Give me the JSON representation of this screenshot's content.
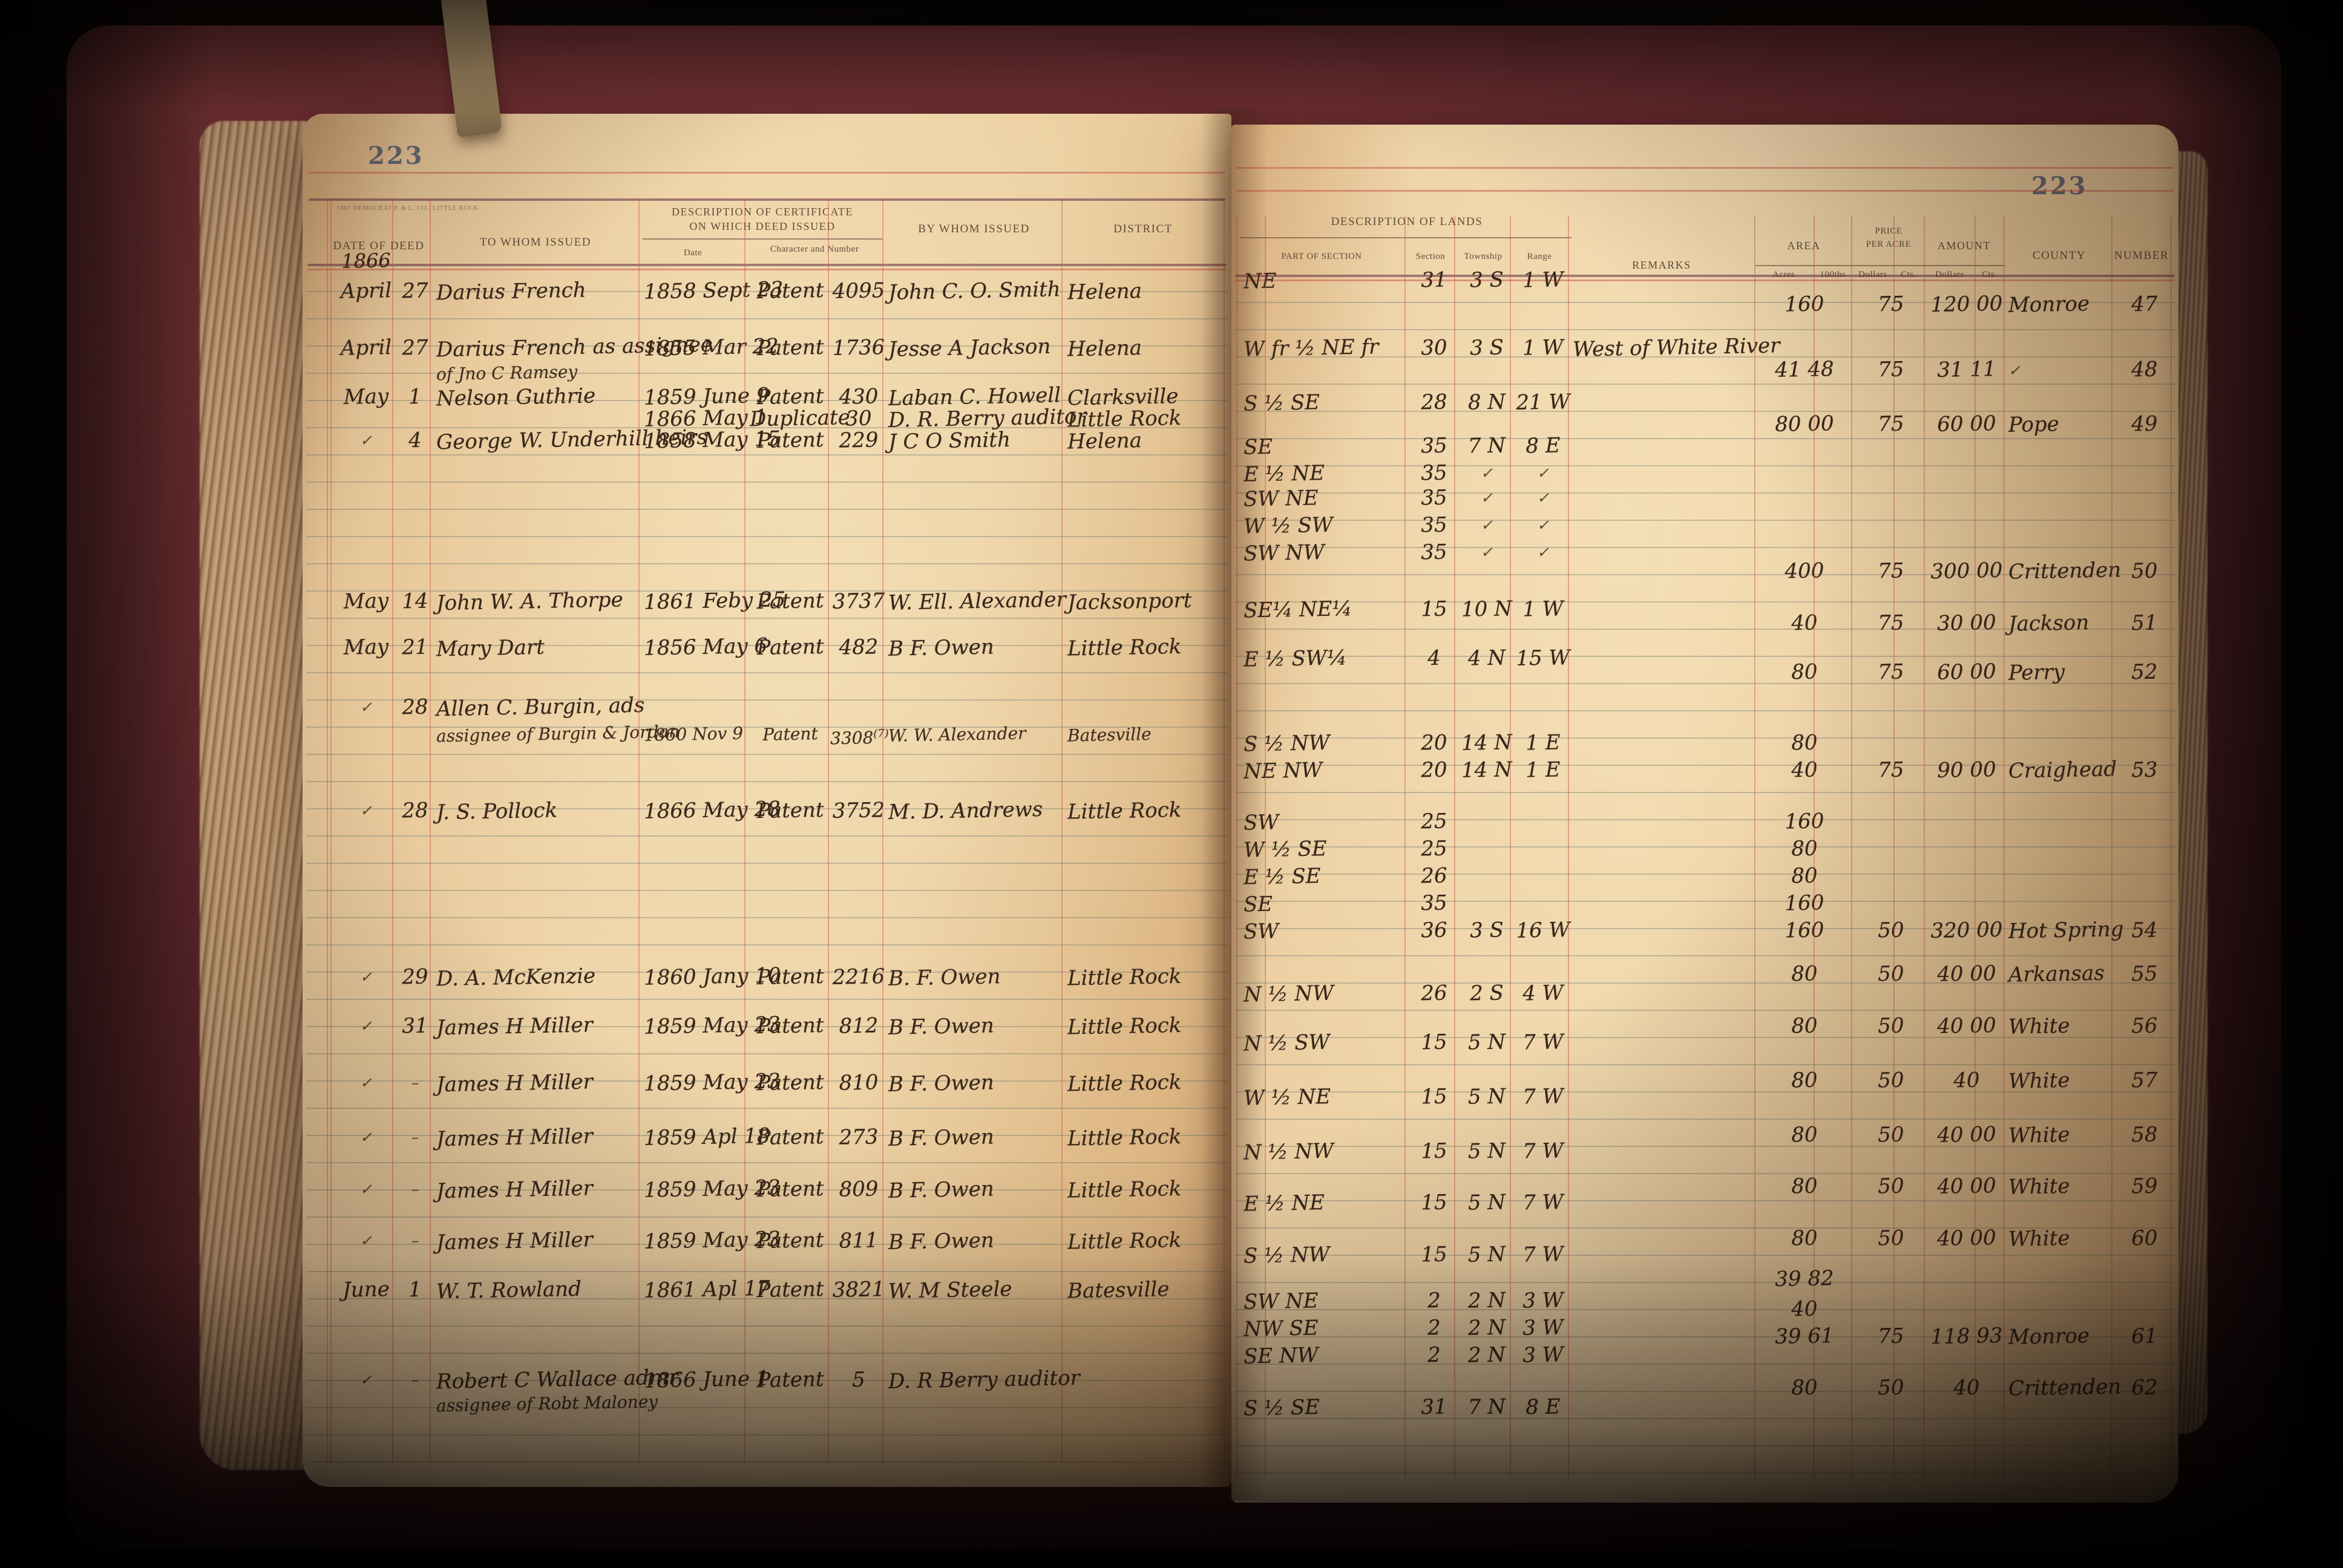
{
  "ledger": {
    "left_page": {
      "page_number": "223",
      "printer_mark": "1887 DEMOCRAT P. & L. CO., LITTLE ROCK",
      "year_heading": "1866",
      "headers": {
        "date_of_deed": "DATE OF DEED",
        "to_whom_issued": "TO WHOM ISSUED",
        "description_of_certificate_line1": "DESCRIPTION OF CERTIFICATE",
        "description_of_certificate_line2": "ON WHICH DEED ISSUED",
        "date": "Date",
        "character_and_number": "Character and Number",
        "by_whom_issued": "BY WHOM ISSUED",
        "district": "DISTRICT"
      },
      "entries": [
        {
          "line": 0.2,
          "month": "1866",
          "cls": "yr"
        },
        {
          "line": 1.3,
          "month": "April",
          "day": "27",
          "name": "Darius French",
          "cert": "1858 Sept 23",
          "char": "Patent",
          "certno": "4095",
          "by": "John C. O. Smith",
          "district": "Helena"
        },
        {
          "line": 3.4,
          "month": "April",
          "day": "27",
          "name": "Darius French as assignee",
          "cert": "1855 Mar 22",
          "char": "Patent",
          "certno": "1736",
          "by": "Jesse A Jackson",
          "district": "Helena"
        },
        {
          "line": 4.3,
          "name": "of Jno C Ramsey",
          "cls": "sub"
        },
        {
          "line": 5.2,
          "month": "May",
          "day": "1",
          "name": "Nelson Guthrie",
          "cert": "1859 June 9",
          "char": "Patent",
          "certno": "430",
          "by": "Laban C. Howell",
          "district": "Clarksville"
        },
        {
          "line": 6.0,
          "cert": "1866 May 1",
          "char": "Duplicate",
          "certno": "30",
          "by": "D. R. Berry auditor",
          "district": "Little Rock"
        },
        {
          "line": 6.8,
          "month": "✓",
          "day": "4",
          "name": "George W. Underhill heirs",
          "cert": "1858 May 15",
          "char": "Patent",
          "certno": "229",
          "by": "J C O Smith",
          "district": "Helena"
        },
        {
          "line": 12.7,
          "month": "May",
          "day": "14",
          "name": "John W. A. Thorpe",
          "cert": "1861 Feby 25",
          "char": "Patent",
          "certno": "3737",
          "by": "W. Ell. Alexander",
          "district": "Jacksonport"
        },
        {
          "line": 14.4,
          "month": "May",
          "day": "21",
          "name": "Mary Dart",
          "cert": "1856 May 6",
          "char": "Patent",
          "certno": "482",
          "by": "B F. Owen",
          "district": "Little Rock"
        },
        {
          "line": 16.6,
          "month": "✓",
          "day": "28",
          "name": "Allen C. Burgin, ads"
        },
        {
          "line": 17.6,
          "name": "assignee of Burgin & Jordan",
          "cls": "sub",
          "cert": "1860 Nov 9",
          "char": "Patent",
          "certno": "3308",
          "certnote": "(7)",
          "by": "W. W. Alexander",
          "district": "Batesville"
        },
        {
          "line": 20.4,
          "month": "✓",
          "day": "28",
          "name": "J. S. Pollock",
          "cert": "1866 May 28",
          "char": "Patent",
          "certno": "3752",
          "by": "M. D. Andrews",
          "district": "Little Rock"
        },
        {
          "line": 26.5,
          "month": "✓",
          "day": "29",
          "name": "D. A. McKenzie",
          "cert": "1860 Jany 10",
          "char": "Patent",
          "certno": "2216",
          "by": "B. F. Owen",
          "district": "Little Rock"
        },
        {
          "line": 28.3,
          "month": "✓",
          "day": "31",
          "name": "James H Miller",
          "cert": "1859 May 23",
          "char": "Patent",
          "certno": "812",
          "by": "B F. Owen",
          "district": "Little Rock"
        },
        {
          "line": 30.4,
          "month": "✓",
          "day": "–",
          "name": "James H Miller",
          "cert": "1859 May 23",
          "char": "Patent",
          "certno": "810",
          "by": "B F. Owen",
          "district": "Little Rock"
        },
        {
          "line": 32.4,
          "month": "✓",
          "day": "–",
          "name": "James H Miller",
          "cert": "1859 Apl 18",
          "char": "Patent",
          "certno": "273",
          "by": "B F. Owen",
          "district": "Little Rock"
        },
        {
          "line": 34.3,
          "month": "✓",
          "day": "–",
          "name": "James H Miller",
          "cert": "1859 May 23",
          "char": "Patent",
          "certno": "809",
          "by": "B F. Owen",
          "district": "Little Rock"
        },
        {
          "line": 36.2,
          "month": "✓",
          "day": "–",
          "name": "James H Miller",
          "cert": "1859 May 23",
          "char": "Patent",
          "certno": "811",
          "by": "B F. Owen",
          "district": "Little Rock"
        },
        {
          "line": 38.0,
          "month": "June",
          "day": "1",
          "name": "W. T. Rowland",
          "cert": "1861 Apl 17",
          "char": "Patent",
          "certno": "3821",
          "by": "W. M Steele",
          "district": "Batesville"
        },
        {
          "line": 41.3,
          "month": "✓",
          "day": "–",
          "name": "Robert C Wallace admr",
          "cert": "1866 June 1",
          "char": "Patent",
          "certno": "5",
          "by": "D. R Berry auditor"
        },
        {
          "line": 42.2,
          "name": "assignee of Robt Maloney",
          "cls": "sub"
        }
      ]
    },
    "right_page": {
      "page_number": "223",
      "headers": {
        "description_of_lands": "DESCRIPTION OF LANDS",
        "part_of_section": "PART OF SECTION",
        "section": "Section",
        "township": "Township",
        "range": "Range",
        "remarks": "REMARKS",
        "area": "AREA",
        "acres": "Acres",
        "hundredths": "100ths",
        "price_line1": "PRICE",
        "price_line2": "PER ACRE",
        "price_dollars": "Dollars",
        "price_cts": "Cts.",
        "amount": "AMOUNT",
        "amount_dollars": "Dollars",
        "amount_cts": "Cts.",
        "county": "COUNTY",
        "number": "NUMBER"
      },
      "entries": [
        {
          "line": 0.5,
          "part": "NE",
          "sec": "31",
          "twp": "3 S",
          "rng": "1 W"
        },
        {
          "line": 1.4,
          "area": "160",
          "price": "75",
          "amount": "120 00",
          "county": "Monroe",
          "num": "47"
        },
        {
          "line": 3.0,
          "part": "W fr ½  NE fr",
          "sec": "30",
          "twp": "3 S",
          "rng": "1 W",
          "remarks": "West of White River"
        },
        {
          "line": 3.8,
          "area": "41 48",
          "price": "75",
          "amount": "31 11",
          "county": "✓",
          "num": "48"
        },
        {
          "line": 5.0,
          "part": "S ½  SE",
          "sec": "28",
          "twp": "8 N",
          "rng": "21 W"
        },
        {
          "line": 5.8,
          "area": "80 00",
          "price": "75",
          "amount": "60 00",
          "county": "Pope",
          "num": "49"
        },
        {
          "line": 6.6,
          "part": "SE",
          "sec": "35",
          "twp": "7 N",
          "rng": "8 E"
        },
        {
          "line": 7.6,
          "part": "E ½  NE",
          "sec": "35",
          "twp": "✓",
          "rng": "✓"
        },
        {
          "line": 8.5,
          "part": "SW  NE",
          "sec": "35",
          "twp": "✓",
          "rng": "✓"
        },
        {
          "line": 9.5,
          "part": "W ½  SW",
          "sec": "35",
          "twp": "✓",
          "rng": "✓"
        },
        {
          "line": 10.5,
          "part": "SW  NW",
          "sec": "35",
          "twp": "✓",
          "rng": "✓"
        },
        {
          "line": 11.2,
          "area": "400",
          "price": "75",
          "amount": "300 00",
          "county": "Crittenden",
          "num": "50"
        },
        {
          "line": 12.6,
          "part": "SE¼  NE¼",
          "sec": "15",
          "twp": "10 N",
          "rng": "1 W"
        },
        {
          "line": 13.1,
          "area": "40",
          "price": "75",
          "amount": "30 00",
          "county": "Jackson",
          "num": "51"
        },
        {
          "line": 14.4,
          "part": "E ½  SW¼",
          "sec": "4",
          "twp": "4 N",
          "rng": "15 W"
        },
        {
          "line": 14.9,
          "area": "80",
          "price": "75",
          "amount": "60 00",
          "county": "Perry",
          "num": "52"
        },
        {
          "line": 17.5,
          "part": "S ½  NW",
          "sec": "20",
          "twp": "14 N",
          "rng": "1 E",
          "area": "80"
        },
        {
          "line": 18.5,
          "part": "NE  NW",
          "sec": "20",
          "twp": "14 N",
          "rng": "1 E",
          "area": "40",
          "price": "75",
          "amount": "90 00",
          "county": "Craighead",
          "num": "53"
        },
        {
          "line": 20.4,
          "part": "SW",
          "sec": "25",
          "area": "160"
        },
        {
          "line": 21.4,
          "part": "W ½  SE",
          "sec": "25",
          "area": "80"
        },
        {
          "line": 22.4,
          "part": "E ½  SE",
          "sec": "26",
          "area": "80"
        },
        {
          "line": 23.4,
          "part": "SE",
          "sec": "35",
          "area": "160"
        },
        {
          "line": 24.4,
          "part": "SW",
          "sec": "36",
          "twp": "3 S",
          "rng": "16 W",
          "area": "160",
          "price": "50",
          "amount": "320 00",
          "county": "Hot Spring",
          "num": "54"
        },
        {
          "line": 26.0,
          "area": "80",
          "price": "50",
          "amount": "40 00",
          "county": "Arkansas",
          "num": "55"
        },
        {
          "line": 26.7,
          "part": "N ½  NW",
          "sec": "26",
          "twp": "2 S",
          "rng": "4 W"
        },
        {
          "line": 27.9,
          "area": "80",
          "price": "50",
          "amount": "40 00",
          "county": "White",
          "num": "56"
        },
        {
          "line": 28.5,
          "part": "N ½  SW",
          "sec": "15",
          "twp": "5 N",
          "rng": "7 W"
        },
        {
          "line": 29.9,
          "area": "80",
          "price": "50",
          "amount": "40",
          "county": "White",
          "num": "57"
        },
        {
          "line": 30.5,
          "part": "W ½  NE",
          "sec": "15",
          "twp": "5 N",
          "rng": "7 W"
        },
        {
          "line": 31.9,
          "area": "80",
          "price": "50",
          "amount": "40 00",
          "county": "White",
          "num": "58"
        },
        {
          "line": 32.5,
          "part": "N ½  NW",
          "sec": "15",
          "twp": "5 N",
          "rng": "7 W"
        },
        {
          "line": 33.8,
          "area": "80",
          "price": "50",
          "amount": "40 00",
          "county": "White",
          "num": "59"
        },
        {
          "line": 34.4,
          "part": "E ½  NE",
          "sec": "15",
          "twp": "5 N",
          "rng": "7 W"
        },
        {
          "line": 35.7,
          "area": "80",
          "price": "50",
          "amount": "40 00",
          "county": "White",
          "num": "60"
        },
        {
          "line": 36.3,
          "part": "S ½  NW",
          "sec": "15",
          "twp": "5 N",
          "rng": "7 W"
        },
        {
          "line": 37.2,
          "area": "39 82"
        },
        {
          "line": 38.0,
          "part": "SW  NE",
          "sec": "2",
          "twp": "2 N",
          "rng": "3 W"
        },
        {
          "line": 38.3,
          "area": "40"
        },
        {
          "line": 39.0,
          "part": "NW  SE",
          "sec": "2",
          "twp": "2 N",
          "rng": "3 W"
        },
        {
          "line": 39.3,
          "area": "39 61",
          "price": "75",
          "amount": "118 93",
          "county": "Monroe",
          "num": "61"
        },
        {
          "line": 40.0,
          "part": "SE  NW",
          "sec": "2",
          "twp": "2 N",
          "rng": "3 W"
        },
        {
          "line": 41.2,
          "area": "80",
          "price": "50",
          "amount": "40",
          "county": "Crittenden",
          "num": "62"
        },
        {
          "line": 41.9,
          "part": "S ½  SE",
          "sec": "31",
          "twp": "7 N",
          "rng": "8 E"
        }
      ]
    }
  }
}
